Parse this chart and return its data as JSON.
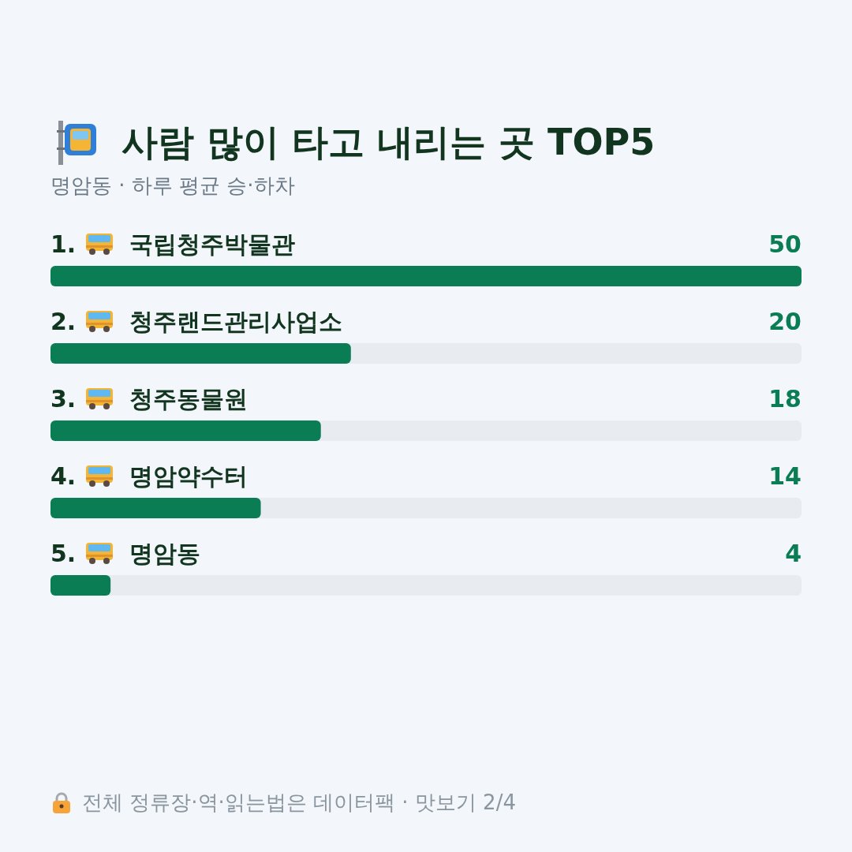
{
  "chart_data": {
    "type": "bar",
    "orientation": "horizontal",
    "title": "사람 많이 타고 내리는 곳 TOP5",
    "subtitle": "명암동 · 하루 평균 승·하차",
    "categories": [
      "국립청주박물관",
      "청주랜드관리사업소",
      "청주동물원",
      "명암약수터",
      "명암동"
    ],
    "values": [
      50,
      20,
      18,
      14,
      4
    ],
    "color": "#0a7d55",
    "data_labels": true,
    "annotations": [
      "1.",
      "2.",
      "3.",
      "4.",
      "5.",
      "전체 정류장·역·읽는법은 데이터팩 · 맛보기 2/4"
    ]
  }
}
